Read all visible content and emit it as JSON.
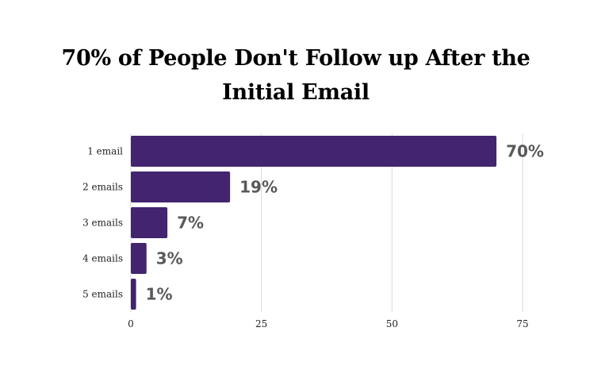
{
  "chart_data": {
    "type": "bar",
    "orientation": "horizontal",
    "title_lines": [
      "70% of People Don't Follow up After the",
      "Initial Email"
    ],
    "categories": [
      "1 email",
      "2 emails",
      "3 emails",
      "4 emails",
      "5 emails"
    ],
    "values": [
      70,
      19,
      7,
      3,
      1
    ],
    "data_labels": [
      "70%",
      "19%",
      "7%",
      "3%",
      "1%"
    ],
    "xlim": [
      0,
      75
    ],
    "x_ticks": [
      "0",
      "25",
      "50",
      "75"
    ],
    "grid": true,
    "bar_color": "#42246f",
    "label_color": "#595959"
  }
}
